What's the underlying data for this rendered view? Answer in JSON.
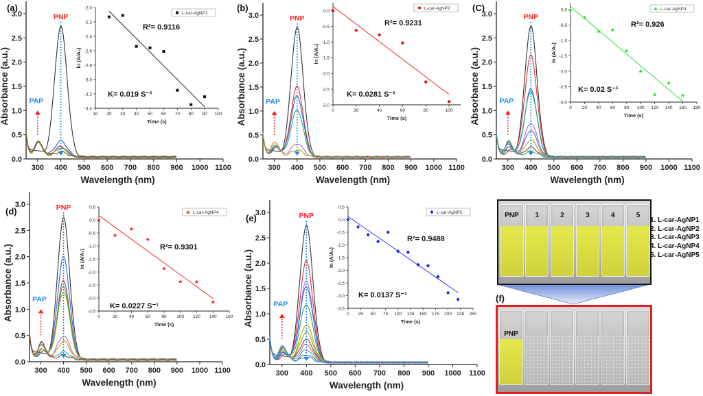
{
  "chart_data": [
    {
      "panel": "(a)",
      "type": "line",
      "xlabel": "Wavelength (nm)",
      "ylabel": "Absorbance (a.u.)",
      "xlim": [
        250,
        1100
      ],
      "ylim": [
        0,
        3.0
      ],
      "xticks": [
        300,
        400,
        500,
        600,
        700,
        800,
        900,
        1000,
        1100
      ],
      "yticks": [
        "0.0",
        "0.5",
        "1.0",
        "1.5",
        "2.0",
        "2.5",
        "3.0"
      ],
      "annotations": {
        "peak": "PNP",
        "product": "PAP",
        "peak_color": "#ff2020",
        "product_color": "#1e88e5"
      },
      "series": [
        {
          "color": "#333333",
          "peak_absorbance_400nm": 2.7
        },
        {
          "color": "#2255dd",
          "peak_absorbance_400nm": 0.33
        },
        {
          "color": "#dd3333",
          "peak_absorbance_400nm": 0.22
        },
        {
          "color": "#aa66dd",
          "peak_absorbance_400nm": 0.21
        },
        {
          "color": "#33aa55",
          "peak_absorbance_400nm": 0.19
        },
        {
          "color": "#bb9900",
          "peak_absorbance_400nm": 0.17
        },
        {
          "color": "#6b4f1d",
          "peak_absorbance_400nm": 0.11
        }
      ],
      "inset": {
        "type": "scatter",
        "legend": "L-car-AgNP1",
        "marker": "square",
        "color": "#111111",
        "xlabel": "Time (s)",
        "ylabel": "ln (A/A₀)",
        "xlim": [
          10,
          100
        ],
        "ylim": [
          -3.4,
          -2.0
        ],
        "xticks": [
          "10",
          "20",
          "30",
          "40",
          "50",
          "60",
          "70",
          "80",
          "90",
          "100"
        ],
        "yticks": [
          "-2.0",
          "-2.2",
          "-2.4",
          "-2.6",
          "-2.8",
          "-3.0",
          "-3.2",
          "-3.4"
        ],
        "points": [
          [
            20,
            -2.13
          ],
          [
            30,
            -2.11
          ],
          [
            40,
            -2.54
          ],
          [
            50,
            -2.56
          ],
          [
            60,
            -2.61
          ],
          [
            70,
            -3.15
          ],
          [
            80,
            -3.35
          ],
          [
            90,
            -3.24
          ]
        ],
        "fit": [
          [
            20,
            -2.05
          ],
          [
            90,
            -3.38
          ]
        ],
        "r2_text": "R²= 0.9116",
        "k_text": "K= 0.019 S⁻¹"
      }
    },
    {
      "panel": "(b)",
      "type": "line",
      "xlabel": "Wavelength (nm)",
      "ylabel": "Absorbance (a.u.)",
      "xlim": [
        250,
        1100
      ],
      "ylim": [
        0,
        3.0
      ],
      "xticks": [
        300,
        400,
        500,
        600,
        700,
        800,
        900,
        1000,
        1100
      ],
      "yticks": [
        "0.0",
        "0.5",
        "1.0",
        "1.5",
        "2.0",
        "2.5",
        "3.0"
      ],
      "annotations": {
        "peak": "PNP",
        "product": "PAP",
        "peak_color": "#ff2020",
        "product_color": "#1e88e5"
      },
      "series": [
        {
          "color": "#333333",
          "peak_absorbance_400nm": 2.7
        },
        {
          "color": "#e03030",
          "peak_absorbance_400nm": 1.47
        },
        {
          "color": "#2266dd",
          "peak_absorbance_400nm": 1.27
        },
        {
          "color": "#33aa66",
          "peak_absorbance_400nm": 0.98
        },
        {
          "color": "#aa66dd",
          "peak_absorbance_400nm": 0.28
        },
        {
          "color": "#cc9900",
          "peak_absorbance_400nm": 0.15
        }
      ],
      "inset": {
        "type": "scatter",
        "legend": "L-car-AgNP2",
        "marker": "circle",
        "color": "#ee1111",
        "xlabel": "Time (s)",
        "ylabel": "ln (A/A₀)",
        "xlim": [
          0,
          110
        ],
        "ylim": [
          -3.0,
          0.25
        ],
        "xticks": [
          "0",
          "20",
          "40",
          "60",
          "80",
          "100"
        ],
        "yticks": [
          "0.0",
          "-0.5",
          "-1.0",
          "-1.5",
          "-2.0",
          "-2.5",
          "-3.0"
        ],
        "points": [
          [
            0,
            0
          ],
          [
            20,
            -0.63
          ],
          [
            40,
            -0.77
          ],
          [
            60,
            -1.03
          ],
          [
            80,
            -2.27
          ],
          [
            100,
            -2.9
          ]
        ],
        "fit": [
          [
            0,
            0.13
          ],
          [
            100,
            -2.67
          ]
        ],
        "r2_text": "R²= 0.9231",
        "k_text": "K= 0.0281 S⁻¹"
      }
    },
    {
      "panel": "(C)",
      "type": "line",
      "xlabel": "Wavelength (nm)",
      "ylabel": "Absorbance (a.u.)",
      "xlim": [
        250,
        1100
      ],
      "ylim": [
        0,
        3.0
      ],
      "xticks": [
        300,
        400,
        500,
        600,
        700,
        800,
        900,
        1000,
        1100
      ],
      "yticks": [
        "0.0",
        "0.5",
        "1.0",
        "1.5",
        "2.0",
        "2.5",
        "3.0"
      ],
      "annotations": {
        "peak": "PNP",
        "product": "PAP",
        "peak_color": "#ff2020",
        "product_color": "#1e88e5"
      },
      "series": [
        {
          "color": "#333333",
          "peak_absorbance_400nm": 2.7
        },
        {
          "color": "#e03030",
          "peak_absorbance_400nm": 2.1
        },
        {
          "color": "#2266dd",
          "peak_absorbance_400nm": 1.4
        },
        {
          "color": "#33aa66",
          "peak_absorbance_400nm": 1.35
        },
        {
          "color": "#aa66dd",
          "peak_absorbance_400nm": 0.7
        },
        {
          "color": "#6666cc",
          "peak_absorbance_400nm": 0.55
        },
        {
          "color": "#cc9900",
          "peak_absorbance_400nm": 0.35
        },
        {
          "color": "#884422",
          "peak_absorbance_400nm": 0.2
        },
        {
          "color": "#22aaaa",
          "peak_absorbance_400nm": 0.12
        }
      ],
      "inset": {
        "type": "scatter",
        "legend": "L-car-AgNP3",
        "marker": "triangle",
        "color": "#22dd22",
        "xlabel": "Time (s)",
        "ylabel": "ln (A/A₀)",
        "xlim": [
          0,
          180
        ],
        "ylim": [
          -3.0,
          0.2
        ],
        "xticks": [
          "0",
          "20",
          "40",
          "60",
          "80",
          "100",
          "120",
          "140",
          "160",
          "180"
        ],
        "yticks": [
          "0.0",
          "-0.5",
          "-1.0",
          "-1.5",
          "-2.0",
          "-2.5",
          "-3.0"
        ],
        "points": [
          [
            0,
            0
          ],
          [
            20,
            -0.25
          ],
          [
            40,
            -0.7
          ],
          [
            60,
            -0.65
          ],
          [
            80,
            -1.33
          ],
          [
            100,
            -1.99
          ],
          [
            120,
            -2.75
          ],
          [
            140,
            -2.37
          ],
          [
            160,
            -2.77
          ]
        ],
        "fit": [
          [
            0,
            0.1
          ],
          [
            160,
            -2.98
          ]
        ],
        "r2_text": "R²= 0.926",
        "k_text": "K= 0.02 S⁻¹"
      }
    },
    {
      "panel": "(d)",
      "type": "line",
      "xlabel": "Wavelength (nm)",
      "ylabel": "Absorbance (a.u.)",
      "xlim": [
        250,
        1100
      ],
      "ylim": [
        0,
        3.0
      ],
      "xticks": [
        300,
        400,
        500,
        600,
        700,
        800,
        900,
        1000,
        1100
      ],
      "yticks": [
        "0.0",
        "0.5",
        "1.0",
        "1.5",
        "2.0",
        "2.5",
        "3.0"
      ],
      "annotations": {
        "peak": "PNP",
        "product": "PAP",
        "peak_color": "#ff2020",
        "product_color": "#1e88e5"
      },
      "series": [
        {
          "color": "#333333",
          "peak_absorbance_400nm": 2.7
        },
        {
          "color": "#2266dd",
          "peak_absorbance_400nm": 1.95
        },
        {
          "color": "#e03030",
          "peak_absorbance_400nm": 1.5
        },
        {
          "color": "#33aa66",
          "peak_absorbance_400nm": 1.4
        },
        {
          "color": "#88aa22",
          "peak_absorbance_400nm": 1.3
        },
        {
          "color": "#aa66dd",
          "peak_absorbance_400nm": 0.45
        },
        {
          "color": "#cc9900",
          "peak_absorbance_400nm": 0.35
        },
        {
          "color": "#22aaaa",
          "peak_absorbance_400nm": 0.15
        },
        {
          "color": "#884422",
          "peak_absorbance_400nm": 0.08
        }
      ],
      "inset": {
        "type": "scatter",
        "legend": "L-car-AgNP4",
        "marker": "star",
        "color": "#ee1111",
        "xlabel": "Time (s)",
        "ylabel": "ln (A/A₀)",
        "xlim": [
          0,
          160
        ],
        "ylim": [
          -3.5,
          0.5
        ],
        "xticks": [
          "0",
          "20",
          "40",
          "60",
          "80",
          "100",
          "120",
          "140",
          "160"
        ],
        "yticks": [
          "0.5",
          "0.0",
          "-0.5",
          "-1.0",
          "-1.5",
          "-2.0",
          "-2.5",
          "-3.0",
          "-3.5"
        ],
        "points": [
          [
            0,
            0
          ],
          [
            20,
            -0.58
          ],
          [
            40,
            -0.34
          ],
          [
            60,
            -0.74
          ],
          [
            80,
            -1.85
          ],
          [
            100,
            -2.36
          ],
          [
            120,
            -2.37
          ],
          [
            140,
            -3.14
          ]
        ],
        "fit": [
          [
            0,
            0.17
          ],
          [
            140,
            -3.02
          ]
        ],
        "r2_text": "R²= 0.9301",
        "k_text": "K= 0.0227 S⁻¹"
      }
    },
    {
      "panel": "(e)",
      "type": "line",
      "xlabel": "Wavelength (nm)",
      "ylabel": "Absorbance (a.u.)",
      "xlim": [
        250,
        1100
      ],
      "ylim": [
        0,
        3.0
      ],
      "xticks": [
        300,
        400,
        500,
        600,
        700,
        800,
        900,
        1000,
        1100
      ],
      "yticks": [
        "0.0",
        "0.5",
        "1.0",
        "1.5",
        "2.0",
        "2.5",
        "3.0"
      ],
      "annotations": {
        "peak": "PNP",
        "product": "PAP",
        "peak_color": "#ff2020",
        "product_color": "#1e88e5"
      },
      "series": [
        {
          "color": "#333333",
          "peak_absorbance_400nm": 2.7
        },
        {
          "color": "#e03030",
          "peak_absorbance_400nm": 2.0
        },
        {
          "color": "#aa66dd",
          "peak_absorbance_400nm": 1.6
        },
        {
          "color": "#2266dd",
          "peak_absorbance_400nm": 1.5
        },
        {
          "color": "#33aa66",
          "peak_absorbance_400nm": 1.15
        },
        {
          "color": "#cc9900",
          "peak_absorbance_400nm": 0.75
        },
        {
          "color": "#88aa22",
          "peak_absorbance_400nm": 0.6
        },
        {
          "color": "#884422",
          "peak_absorbance_400nm": 0.45
        },
        {
          "color": "#dd55aa",
          "peak_absorbance_400nm": 0.35
        },
        {
          "color": "#22aaaa",
          "peak_absorbance_400nm": 0.25
        },
        {
          "color": "#666666",
          "peak_absorbance_400nm": 0.15
        },
        {
          "color": "#3399ff",
          "peak_absorbance_400nm": 0.1
        }
      ],
      "inset": {
        "type": "scatter",
        "legend": "L-car-AgNP5",
        "marker": "diamond",
        "color": "#1122ee",
        "xlabel": "Time (s)",
        "ylabel": "ln (A/A₀)",
        "xlim": [
          0,
          250
        ],
        "ylim": [
          -3.5,
          0.5
        ],
        "xticks": [
          "0",
          "25",
          "50",
          "75",
          "100",
          "125",
          "150",
          "175",
          "200",
          "225",
          "250"
        ],
        "yticks": [
          "0.5",
          "0.0",
          "-0.5",
          "-1.0",
          "-1.5",
          "-2.0",
          "-2.5",
          "-3.0",
          "-3.5"
        ],
        "points": [
          [
            0,
            0
          ],
          [
            20,
            -0.29
          ],
          [
            40,
            -0.6
          ],
          [
            60,
            -0.86
          ],
          [
            80,
            -0.5
          ],
          [
            100,
            -1.25
          ],
          [
            120,
            -1.29
          ],
          [
            140,
            -1.78
          ],
          [
            160,
            -1.82
          ],
          [
            180,
            -2.25
          ],
          [
            200,
            -2.89
          ],
          [
            220,
            -3.15
          ]
        ],
        "fit": [
          [
            0,
            0.12
          ],
          [
            220,
            -2.88
          ]
        ],
        "r2_text": "R²= 0.9488",
        "k_text": "K= 0.0137 S⁻¹"
      }
    }
  ],
  "panel_f": {
    "label": "(f)",
    "before_cuvette_labels": [
      "PNP",
      "1",
      "2",
      "3",
      "4",
      "5"
    ],
    "after_cuvette_labels": [
      "PNP"
    ],
    "legend": [
      "1. L-car-AgNP1",
      "2. L-car-AgNP2",
      "3. L-car-AgNP3",
      "4. L-car-AgNP4",
      "5. L-car-AgNP5"
    ],
    "colors": {
      "pnp_solution": "#e4e84a",
      "after_frame": "#e02020",
      "before_frame": "#111111"
    }
  }
}
